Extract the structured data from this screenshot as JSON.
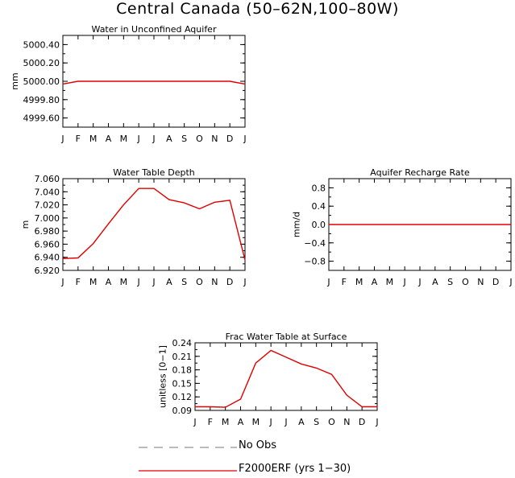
{
  "figure": {
    "title": "Central Canada (50–62N,100–80W)",
    "line_color": "#e00000",
    "obs_color": "#777777"
  },
  "chart_data": [
    {
      "type": "line",
      "title": "Water in Unconfined Aquifer",
      "ylabel": "mm",
      "xlabel": "",
      "categories": [
        "J",
        "F",
        "M",
        "A",
        "M",
        "J",
        "J",
        "A",
        "S",
        "O",
        "N",
        "D",
        "J"
      ],
      "ylim": [
        4999.5,
        5000.5
      ],
      "yticks": [
        4999.6,
        4999.8,
        5000.0,
        5000.2,
        5000.4
      ],
      "ytick_labels": [
        "4999.60",
        "4999.80",
        "5000.00",
        "5000.20",
        "5000.40"
      ],
      "series": [
        {
          "name": "F2000ERF (yrs 1-30)",
          "values": [
            4999.97,
            5000.0,
            5000.0,
            5000.0,
            5000.0,
            5000.0,
            5000.0,
            5000.0,
            5000.0,
            5000.0,
            5000.0,
            5000.0,
            4999.97
          ]
        }
      ]
    },
    {
      "type": "line",
      "title": "Water Table Depth",
      "ylabel": "m",
      "xlabel": "",
      "categories": [
        "J",
        "F",
        "M",
        "A",
        "M",
        "J",
        "J",
        "A",
        "S",
        "O",
        "N",
        "D",
        "J"
      ],
      "ylim": [
        6.92,
        7.06
      ],
      "yticks": [
        6.92,
        6.94,
        6.96,
        6.98,
        7.0,
        7.02,
        7.04,
        7.06
      ],
      "ytick_labels": [
        "6.920",
        "6.940",
        "6.960",
        "6.980",
        "7.000",
        "7.020",
        "7.040",
        "7.060"
      ],
      "series": [
        {
          "name": "F2000ERF (yrs 1-30)",
          "values": [
            6.938,
            6.939,
            6.961,
            6.991,
            7.02,
            7.045,
            7.045,
            7.028,
            7.023,
            7.014,
            7.024,
            7.027,
            6.936
          ]
        }
      ]
    },
    {
      "type": "line",
      "title": "Aquifer Recharge Rate",
      "ylabel": "mm/d",
      "xlabel": "",
      "categories": [
        "J",
        "F",
        "M",
        "A",
        "M",
        "J",
        "J",
        "A",
        "S",
        "O",
        "N",
        "D",
        "J"
      ],
      "ylim": [
        -1.0,
        1.0
      ],
      "yticks": [
        -0.8,
        -0.4,
        0.0,
        0.4,
        0.8
      ],
      "ytick_labels": [
        "−0.8",
        "−0.4",
        "0.0",
        "0.4",
        "0.8"
      ],
      "series": [
        {
          "name": "F2000ERF (yrs 1-30)",
          "values": [
            0,
            0,
            0,
            0,
            0,
            0,
            0,
            0,
            0,
            0,
            0,
            0,
            0
          ]
        }
      ]
    },
    {
      "type": "line",
      "title": "Frac Water Table at Surface",
      "ylabel": "unitless [0−1]",
      "xlabel": "",
      "categories": [
        "J",
        "F",
        "M",
        "A",
        "M",
        "J",
        "J",
        "A",
        "S",
        "O",
        "N",
        "D",
        "J"
      ],
      "ylim": [
        0.09,
        0.24
      ],
      "yticks": [
        0.09,
        0.12,
        0.15,
        0.18,
        0.21,
        0.24
      ],
      "ytick_labels": [
        "0.09",
        "0.12",
        "0.15",
        "0.18",
        "0.21",
        "0.24"
      ],
      "series": [
        {
          "name": "F2000ERF (yrs 1-30)",
          "values": [
            0.098,
            0.098,
            0.097,
            0.115,
            0.195,
            0.223,
            0.208,
            0.193,
            0.184,
            0.17,
            0.124,
            0.098,
            0.098
          ]
        }
      ]
    }
  ],
  "legend": {
    "entries": [
      {
        "label": "No Obs",
        "style": "dashed"
      },
      {
        "label": "F2000ERF (yrs 1−30)",
        "style": "solid"
      }
    ]
  }
}
